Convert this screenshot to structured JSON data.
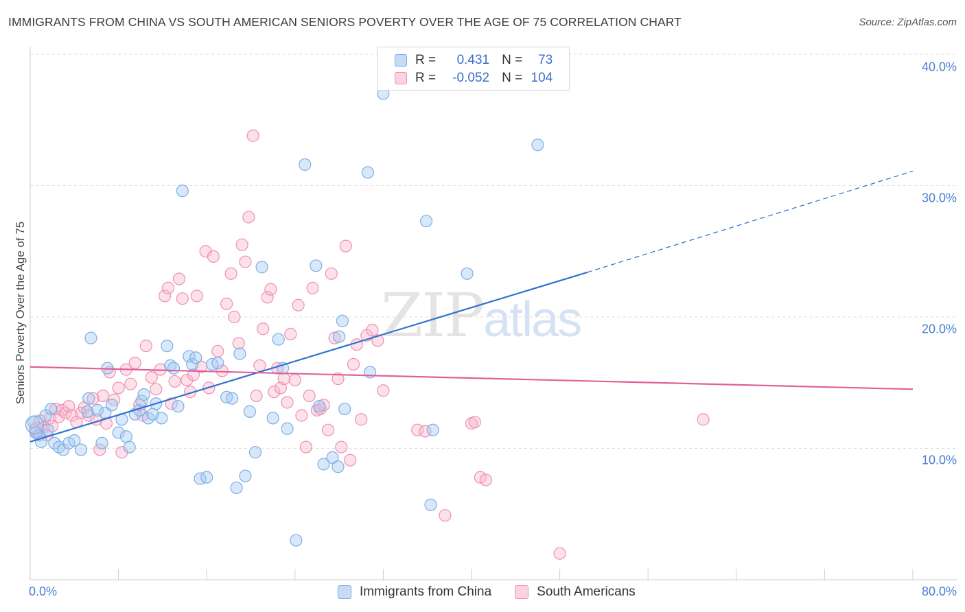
{
  "title": "IMMIGRANTS FROM CHINA VS SOUTH AMERICAN SENIORS POVERTY OVER THE AGE OF 75 CORRELATION CHART",
  "source": "Source: ZipAtlas.com",
  "watermark": {
    "zip": "ZIP",
    "atlas": "atlas"
  },
  "legend": {
    "rows": [
      {
        "r_label": "R =",
        "r_value": "0.431",
        "n_label": "N =",
        "n_value": "73"
      },
      {
        "r_label": "R =",
        "r_value": "-0.052",
        "n_label": "N =",
        "n_value": "104"
      }
    ]
  },
  "chart_data": {
    "type": "scatter",
    "title": "IMMIGRANTS FROM CHINA VS SOUTH AMERICAN SENIORS POVERTY OVER THE AGE OF 75 CORRELATION CHART",
    "xlabel": "",
    "ylabel": "Seniors Poverty Over the Age of 75",
    "xlim": [
      0,
      80
    ],
    "ylim": [
      0,
      40
    ],
    "x_tick_labels": [
      "0.0%",
      "80.0%"
    ],
    "y_tick_labels": [
      "10.0%",
      "20.0%",
      "30.0%",
      "40.0%"
    ],
    "y_ticks": [
      10,
      20,
      30,
      40
    ],
    "grid": true,
    "legend_position": "top-center",
    "colors": {
      "china": "#7aaee8",
      "south": "#f08fb0",
      "china_line": "#2f72d0",
      "south_line": "#e0609a"
    },
    "series": [
      {
        "name": "Immigrants from China",
        "color": "#7aaee8",
        "trend": {
          "x": [
            0,
            50.5
          ],
          "y": [
            10.5,
            23.4
          ],
          "dashed_to": [
            80,
            31.1
          ]
        },
        "points": [
          [
            0.3,
            12.0
          ],
          [
            0.5,
            11.2
          ],
          [
            0.8,
            11.0
          ],
          [
            1.0,
            10.5
          ],
          [
            1.4,
            12.5
          ],
          [
            1.6,
            11.4
          ],
          [
            1.9,
            13.0
          ],
          [
            2.2,
            10.4
          ],
          [
            2.6,
            10.1
          ],
          [
            3.0,
            9.9
          ],
          [
            3.5,
            10.4
          ],
          [
            4.0,
            10.6
          ],
          [
            4.6,
            9.9
          ],
          [
            5.2,
            12.8
          ],
          [
            5.5,
            18.4
          ],
          [
            5.3,
            13.8
          ],
          [
            6.1,
            12.9
          ],
          [
            6.5,
            10.4
          ],
          [
            6.8,
            12.7
          ],
          [
            7.0,
            16.1
          ],
          [
            7.4,
            13.3
          ],
          [
            8.0,
            11.2
          ],
          [
            8.3,
            12.2
          ],
          [
            8.7,
            10.9
          ],
          [
            9.0,
            10.1
          ],
          [
            9.5,
            12.6
          ],
          [
            9.9,
            12.9
          ],
          [
            10.1,
            13.6
          ],
          [
            10.3,
            14.1
          ],
          [
            10.7,
            12.3
          ],
          [
            11.1,
            12.6
          ],
          [
            11.4,
            13.4
          ],
          [
            11.9,
            12.3
          ],
          [
            12.4,
            17.8
          ],
          [
            12.7,
            16.3
          ],
          [
            13.0,
            16.1
          ],
          [
            13.4,
            13.2
          ],
          [
            13.8,
            29.6
          ],
          [
            14.4,
            17.0
          ],
          [
            14.7,
            16.4
          ],
          [
            15.0,
            16.9
          ],
          [
            15.4,
            7.7
          ],
          [
            16.0,
            7.8
          ],
          [
            16.5,
            16.4
          ],
          [
            17.0,
            16.5
          ],
          [
            17.8,
            13.9
          ],
          [
            18.3,
            13.8
          ],
          [
            18.7,
            7.0
          ],
          [
            19.0,
            17.2
          ],
          [
            19.5,
            7.9
          ],
          [
            19.9,
            12.8
          ],
          [
            20.4,
            9.7
          ],
          [
            21.0,
            23.8
          ],
          [
            22.0,
            12.3
          ],
          [
            22.5,
            18.3
          ],
          [
            22.9,
            16.1
          ],
          [
            23.3,
            11.5
          ],
          [
            24.1,
            3.0
          ],
          [
            24.9,
            31.6
          ],
          [
            25.9,
            23.9
          ],
          [
            26.2,
            13.2
          ],
          [
            26.6,
            8.8
          ],
          [
            27.4,
            9.3
          ],
          [
            27.9,
            8.6
          ],
          [
            28.0,
            18.5
          ],
          [
            28.3,
            19.7
          ],
          [
            28.5,
            13.0
          ],
          [
            30.6,
            31.0
          ],
          [
            30.8,
            15.8
          ],
          [
            32.0,
            37.0
          ],
          [
            35.9,
            27.3
          ],
          [
            36.3,
            5.7
          ],
          [
            36.5,
            11.4
          ],
          [
            39.6,
            23.3
          ],
          [
            46.0,
            33.1
          ]
        ]
      },
      {
        "name": "South Americans",
        "color": "#f08fb0",
        "trend": {
          "x": [
            0,
            80
          ],
          "y": [
            16.2,
            14.5
          ]
        },
        "points": [
          [
            0.5,
            11.4
          ],
          [
            0.9,
            12.1
          ],
          [
            1.2,
            11.6
          ],
          [
            1.5,
            11.0
          ],
          [
            1.8,
            12.3
          ],
          [
            2.0,
            11.7
          ],
          [
            2.3,
            13.0
          ],
          [
            2.6,
            12.4
          ],
          [
            2.9,
            12.9
          ],
          [
            3.2,
            12.7
          ],
          [
            3.5,
            13.2
          ],
          [
            3.8,
            12.5
          ],
          [
            4.2,
            12.0
          ],
          [
            4.6,
            12.7
          ],
          [
            4.9,
            13.1
          ],
          [
            5.3,
            12.5
          ],
          [
            5.7,
            13.8
          ],
          [
            6.0,
            12.2
          ],
          [
            6.3,
            9.9
          ],
          [
            6.6,
            14.0
          ],
          [
            6.9,
            11.9
          ],
          [
            7.2,
            15.8
          ],
          [
            7.6,
            13.7
          ],
          [
            8.0,
            14.6
          ],
          [
            8.3,
            9.7
          ],
          [
            8.7,
            16.0
          ],
          [
            9.1,
            14.9
          ],
          [
            9.5,
            16.5
          ],
          [
            9.9,
            13.3
          ],
          [
            10.2,
            12.5
          ],
          [
            10.5,
            17.8
          ],
          [
            11.0,
            15.4
          ],
          [
            11.4,
            14.5
          ],
          [
            11.8,
            16.0
          ],
          [
            12.2,
            21.6
          ],
          [
            12.5,
            22.2
          ],
          [
            12.8,
            13.4
          ],
          [
            13.1,
            15.1
          ],
          [
            13.5,
            22.9
          ],
          [
            13.8,
            21.4
          ],
          [
            14.2,
            15.2
          ],
          [
            14.5,
            14.3
          ],
          [
            14.8,
            15.6
          ],
          [
            15.1,
            21.6
          ],
          [
            15.5,
            16.2
          ],
          [
            15.9,
            25.0
          ],
          [
            16.2,
            14.6
          ],
          [
            16.6,
            24.6
          ],
          [
            17.0,
            17.4
          ],
          [
            17.4,
            15.9
          ],
          [
            17.8,
            21.0
          ],
          [
            18.2,
            23.3
          ],
          [
            18.5,
            20.0
          ],
          [
            18.9,
            18.0
          ],
          [
            19.2,
            25.5
          ],
          [
            19.5,
            24.2
          ],
          [
            19.8,
            27.6
          ],
          [
            20.2,
            33.8
          ],
          [
            20.5,
            14.0
          ],
          [
            20.8,
            16.3
          ],
          [
            21.1,
            19.1
          ],
          [
            21.5,
            21.5
          ],
          [
            21.8,
            22.1
          ],
          [
            22.1,
            14.3
          ],
          [
            22.4,
            16.1
          ],
          [
            22.7,
            14.6
          ],
          [
            23.0,
            15.3
          ],
          [
            23.3,
            13.5
          ],
          [
            23.6,
            18.7
          ],
          [
            24.0,
            15.2
          ],
          [
            24.3,
            20.9
          ],
          [
            24.6,
            12.5
          ],
          [
            25.0,
            10.1
          ],
          [
            25.3,
            14.0
          ],
          [
            25.6,
            22.2
          ],
          [
            26.0,
            12.9
          ],
          [
            26.3,
            13.0
          ],
          [
            26.6,
            13.3
          ],
          [
            27.0,
            11.4
          ],
          [
            27.3,
            23.3
          ],
          [
            27.6,
            18.4
          ],
          [
            27.9,
            15.3
          ],
          [
            28.2,
            10.1
          ],
          [
            28.6,
            25.4
          ],
          [
            29.0,
            9.1
          ],
          [
            29.3,
            16.4
          ],
          [
            29.6,
            17.9
          ],
          [
            30.0,
            12.2
          ],
          [
            30.5,
            18.6
          ],
          [
            31.0,
            19.0
          ],
          [
            31.5,
            18.2
          ],
          [
            32.0,
            14.4
          ],
          [
            35.1,
            11.4
          ],
          [
            35.8,
            11.3
          ],
          [
            37.6,
            4.9
          ],
          [
            40.0,
            11.9
          ],
          [
            40.3,
            12.0
          ],
          [
            40.8,
            7.8
          ],
          [
            41.3,
            7.6
          ],
          [
            48.0,
            2.0
          ],
          [
            61.0,
            12.2
          ]
        ]
      }
    ]
  },
  "bottom_legend": [
    "Immigrants from China",
    "South Americans"
  ]
}
